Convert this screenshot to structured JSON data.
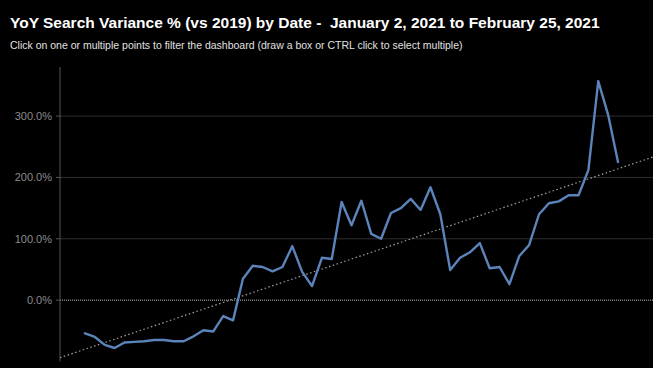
{
  "chart_data": {
    "type": "line",
    "title": "YoY Search Variance % (vs 2019) by Date -  January 2, 2021 to February 25, 2021",
    "subtitle": "Click on one or multiple points to filter the dashboard (draw a box or CTRL click to select multiple)",
    "categories": [
      null,
      null,
      null,
      null,
      null,
      null,
      null,
      null,
      null,
      null,
      null,
      null,
      null,
      null,
      null,
      null,
      null,
      null,
      null,
      null,
      null,
      null,
      null,
      null,
      null,
      null,
      null,
      null,
      null,
      null,
      null,
      null,
      null,
      null,
      null,
      null,
      null,
      null,
      null,
      null,
      null,
      null,
      null,
      null,
      null,
      null,
      null,
      null,
      null,
      null,
      null,
      null,
      null,
      null,
      null
    ],
    "series": [
      {
        "color": "#5b84bb",
        "line_style": "solid",
        "values": [
          -54,
          -60,
          -73,
          -78,
          -69,
          -68,
          -67,
          -65,
          -65,
          -67,
          -67,
          -59,
          -49,
          -51,
          -26,
          -33,
          35,
          56,
          54,
          47,
          54,
          88,
          46,
          23,
          69,
          67,
          160,
          122,
          162,
          108,
          100,
          142,
          150,
          165,
          147,
          184,
          140,
          49,
          69,
          78,
          93,
          52,
          54,
          26,
          72,
          90,
          140,
          158,
          161,
          171,
          171,
          212,
          357,
          302,
          225
        ]
      }
    ],
    "trend_line": [
      -80,
      214
    ],
    "ylim": [
      -100,
      380
    ],
    "yticks": [
      {
        "value": 0,
        "label": "0.0%"
      },
      {
        "value": 100,
        "label": "100.0%"
      },
      {
        "value": 200,
        "label": "200.0%"
      },
      {
        "value": 300,
        "label": "300.0%"
      }
    ],
    "grid": true,
    "tick_labels": "y"
  }
}
